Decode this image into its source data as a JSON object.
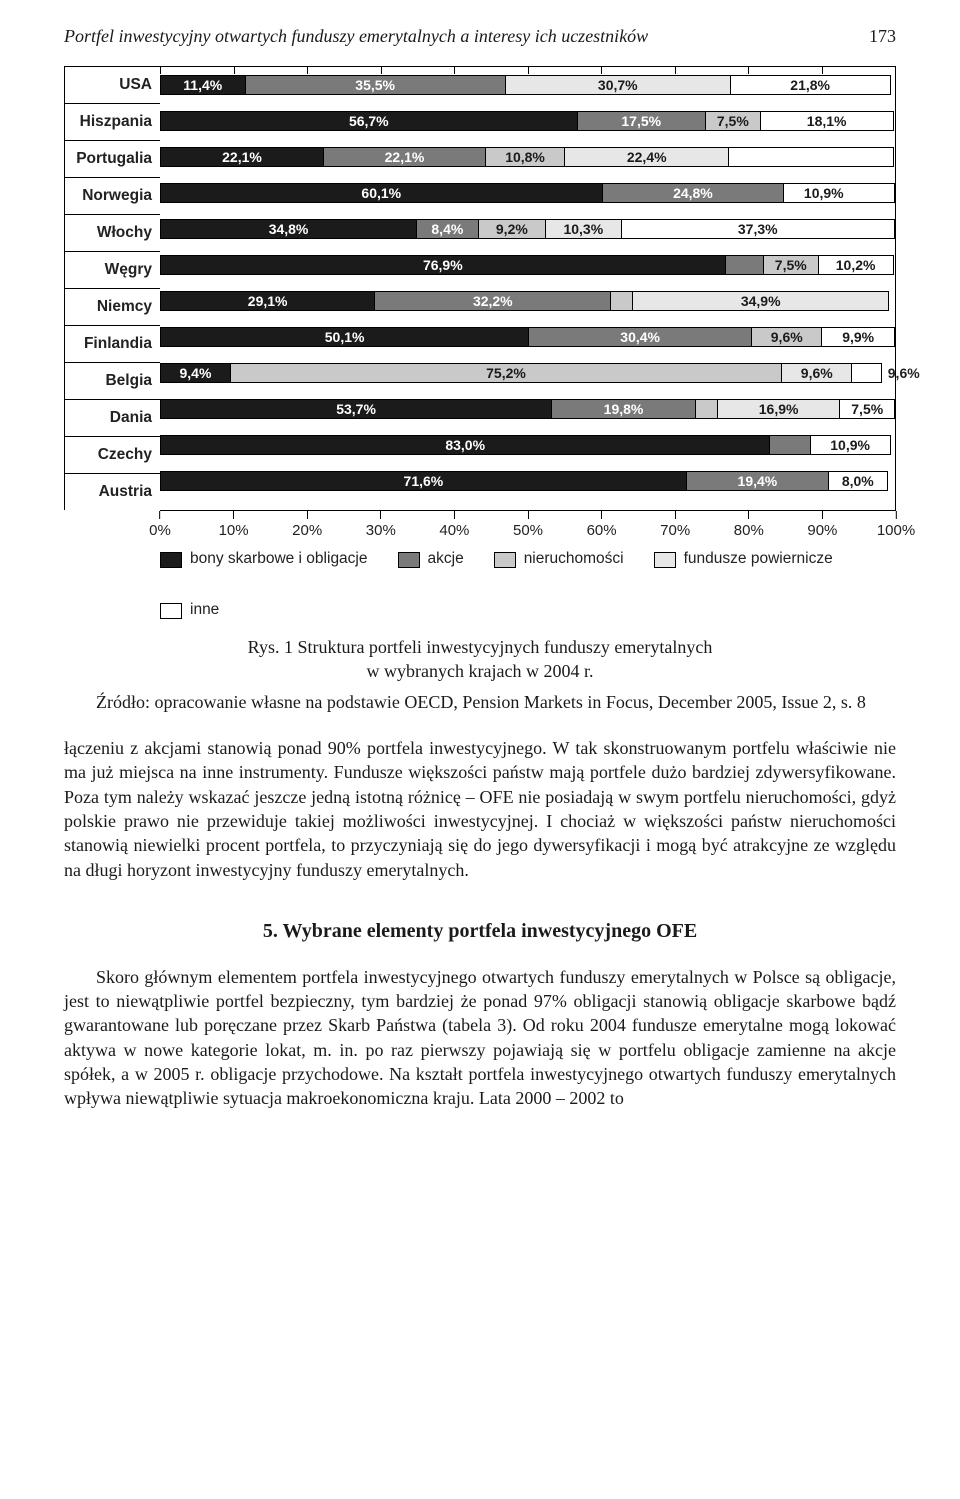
{
  "running_head": {
    "title": "Portfel inwestycyjny otwartych funduszy emerytalnych a interesy ich uczestników",
    "page": "173"
  },
  "chart": {
    "type": "stacked-bar-horizontal",
    "x_ticks": [
      "0%",
      "10%",
      "20%",
      "30%",
      "40%",
      "50%",
      "60%",
      "70%",
      "80%",
      "90%",
      "100%"
    ],
    "series": [
      {
        "key": "bony",
        "label": "bony skarbowe i obligacje",
        "color": "#1b1b1b",
        "text": "#ffffff"
      },
      {
        "key": "akcje",
        "label": "akcje",
        "color": "#7a7a7a",
        "text": "#ffffff"
      },
      {
        "key": "nier",
        "label": "nieruchomości",
        "color": "#c9c9c9",
        "text": "#1b1b1b"
      },
      {
        "key": "fund",
        "label": "fundusze powiernicze",
        "color": "#e7e7e7",
        "text": "#1b1b1b"
      },
      {
        "key": "inne",
        "label": "inne",
        "color": "#ffffff",
        "text": "#1b1b1b"
      }
    ],
    "rows": [
      {
        "label": "USA",
        "v": {
          "bony": 11.4,
          "akcje": 35.5,
          "nier": 0,
          "fund": 30.7,
          "inne": 21.8
        },
        "txt": {
          "bony": "11,4%",
          "akcje": "35,5%",
          "nier": "",
          "fund": "30,7%",
          "inne": "21,8%"
        }
      },
      {
        "label": "Hiszpania",
        "v": {
          "bony": 56.7,
          "akcje": 17.5,
          "nier": 7.5,
          "fund": 0,
          "inne": 18.1
        },
        "txt": {
          "bony": "56,7%",
          "akcje": "17,5%",
          "nier": "7,5%",
          "fund": "",
          "inne": "18,1%"
        }
      },
      {
        "label": "Portugalia",
        "v": {
          "bony": 22.1,
          "akcje": 22.1,
          "nier": 10.8,
          "fund": 22.4,
          "inne": 22.4
        },
        "txt": {
          "bony": "22,1%",
          "akcje": "22,1%",
          "nier": "10,8%",
          "fund": "22,4%",
          "inne": ""
        }
      },
      {
        "label": "Norwegia",
        "v": {
          "bony": 60.1,
          "akcje": 24.8,
          "nier": 0,
          "fund": 0,
          "inne": 10.9
        },
        "txt": {
          "bony": "60,1%",
          "akcje": "24,8%",
          "nier": "",
          "fund": "",
          "inne": "10,9%"
        },
        "gap": 4.2
      },
      {
        "label": "Włochy",
        "v": {
          "bony": 34.8,
          "akcje": 8.4,
          "nier": 9.2,
          "fund": 10.3,
          "inne": 37.3
        },
        "txt": {
          "bony": "34,8%",
          "akcje": "8,4%",
          "nier": "9,2%",
          "fund": "10,3%",
          "inne": "37,3%"
        }
      },
      {
        "label": "Węgry",
        "v": {
          "bony": 76.9,
          "akcje": 5.2,
          "nier": 7.5,
          "fund": 0,
          "inne": 10.2
        },
        "txt": {
          "bony": "76,9%",
          "akcje": "5,2%",
          "nier": "7,5%",
          "fund": "",
          "inne": "10,2%"
        }
      },
      {
        "label": "Niemcy",
        "v": {
          "bony": 29.1,
          "akcje": 32.2,
          "nier": 3.0,
          "fund": 34.9,
          "inne": 0
        },
        "txt": {
          "bony": "29,1%",
          "akcje": "32,2%",
          "nier": "",
          "fund": "34,9%",
          "inne": ""
        }
      },
      {
        "label": "Finlandia",
        "v": {
          "bony": 50.1,
          "akcje": 30.4,
          "nier": 9.6,
          "fund": 0,
          "inne": 9.9
        },
        "txt": {
          "bony": "50,1%",
          "akcje": "30,4%",
          "nier": "9,6%",
          "fund": "",
          "inne": "9,9%"
        }
      },
      {
        "label": "Belgia",
        "v": {
          "bony": 9.4,
          "akcje": 0,
          "nier": 75.2,
          "fund": 9.6,
          "inne": 4.0
        },
        "txt": {
          "bony": "9,4%",
          "akcje": "",
          "nier": "75,2%",
          "fund": "9,6%",
          "inne": ""
        },
        "float_after": {
          "key": "fund",
          "text": "9,6%"
        }
      },
      {
        "label": "Dania",
        "v": {
          "bony": 53.7,
          "akcje": 19.8,
          "nier": 3.0,
          "fund": 16.9,
          "inne": 7.5
        },
        "txt": {
          "bony": "53,7%",
          "akcje": "19,8%",
          "nier": "",
          "fund": "16,9%",
          "inne": "7,5%"
        }
      },
      {
        "label": "Czechy",
        "v": {
          "bony": 83.0,
          "akcje": 5.5,
          "nier": 0,
          "fund": 0,
          "inne": 10.9
        },
        "txt": {
          "bony": "83,0%",
          "akcje": "5,5%",
          "nier": "",
          "fund": "",
          "inne": "10,9%"
        }
      },
      {
        "label": "Austria",
        "v": {
          "bony": 71.6,
          "akcje": 19.4,
          "nier": 0,
          "fund": 0,
          "inne": 8.0
        },
        "txt": {
          "bony": "71,6%",
          "akcje": "19,4%",
          "nier": "",
          "fund": "",
          "inne": "8,0%"
        }
      }
    ]
  },
  "caption": {
    "line1": "Rys. 1 Struktura portfeli inwestycyjnych funduszy emerytalnych",
    "line2": "w wybranych krajach w 2004 r."
  },
  "source": "Źródło: opracowanie własne na podstawie OECD, Pension Markets in Focus, December 2005, Issue 2, s. 8",
  "body_p1": "łączeniu z akcjami stanowią ponad 90% portfela inwestycyjnego. W tak skonstruowanym portfelu właściwie nie ma już miejsca na inne instrumenty. Fundusze większości państw mają portfele dużo bardziej zdywersyfikowane. Poza tym należy wskazać jeszcze jedną istotną różnicę – OFE nie posiadają w swym portfelu nieruchomości, gdyż polskie prawo nie przewiduje takiej możliwości inwestycyjnej. I chociaż w większości państw nieruchomości stanowią niewielki procent portfela, to przyczyniają się do jego dywersyfikacji i mogą być atrakcyjne ze względu na długi horyzont inwestycyjny funduszy emerytalnych.",
  "section_heading": "5. Wybrane elementy portfela inwestycyjnego OFE",
  "body_p2": "Skoro głównym elementem portfela inwestycyjnego otwartych funduszy emerytalnych w Polsce są obligacje, jest to niewątpliwie portfel bezpieczny, tym bardziej że ponad 97% obligacji stanowią obligacje skarbowe bądź gwarantowane lub poręczane przez Skarb Państwa (tabela 3). Od roku 2004 fundusze emerytalne mogą lokować aktywa w nowe kategorie lokat, m. in. po raz pierwszy pojawiają się w portfelu obligacje zamienne na akcje spółek, a w 2005 r. obligacje przychodowe. Na kształt portfela inwestycyjnego otwartych funduszy emerytalnych wpływa niewątpliwie sytuacja makroekonomiczna kraju. Lata 2000 – 2002 to"
}
